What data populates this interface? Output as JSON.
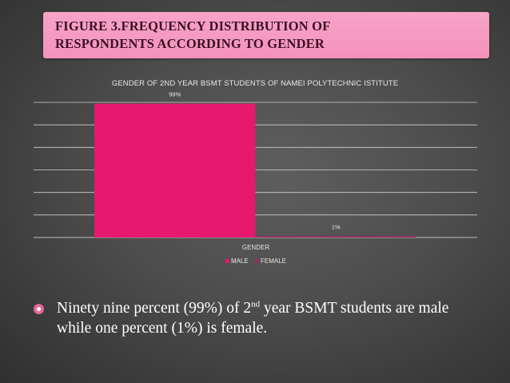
{
  "slide": {
    "title_line1": "FIGURE 3.FREQUENCY DISTRIBUTION OF",
    "title_line2": "RESPONDENTS ACCORDING TO GENDER"
  },
  "chart_data": {
    "type": "bar",
    "title": "GENDER OF 2ND YEAR BSMT STUDENTS OF NAMEI POLYTECHNIC ISTITUTE",
    "categories": [
      "GENDER"
    ],
    "series": [
      {
        "name": "MALE",
        "values": [
          99
        ],
        "label": "99%"
      },
      {
        "name": "FEMALE",
        "values": [
          1
        ],
        "label": "1%"
      }
    ],
    "xlabel": "GENDER",
    "ylabel": "",
    "ylim": [
      0,
      100
    ],
    "grid": true,
    "legend": "bottom",
    "colors": {
      "MALE": "#e6196e",
      "FEMALE": "#9c2a62"
    }
  },
  "bullet": {
    "text_part1": "Ninety nine percent (99%) of 2",
    "superscript": "nd",
    "text_part2": " year BSMT students are male while one percent (1%) is female."
  }
}
